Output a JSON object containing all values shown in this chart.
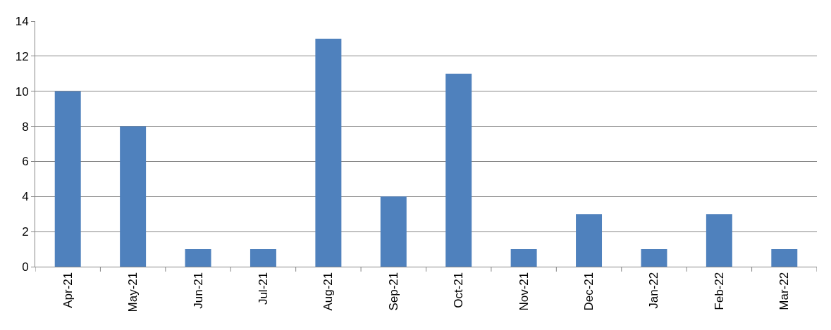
{
  "chart_data": {
    "type": "bar",
    "categories": [
      "Apr-21",
      "May-21",
      "Jun-21",
      "Jul-21",
      "Aug-21",
      "Sep-21",
      "Oct-21",
      "Nov-21",
      "Dec-21",
      "Jan-22",
      "Feb-22",
      "Mar-22"
    ],
    "values": [
      10,
      8,
      1,
      1,
      13,
      4,
      11,
      1,
      3,
      1,
      3,
      1
    ],
    "color": "#4f81bd",
    "ylim": [
      0,
      14
    ],
    "yticks": [
      0,
      2,
      4,
      6,
      8,
      10,
      12,
      14
    ],
    "grid": "y"
  }
}
